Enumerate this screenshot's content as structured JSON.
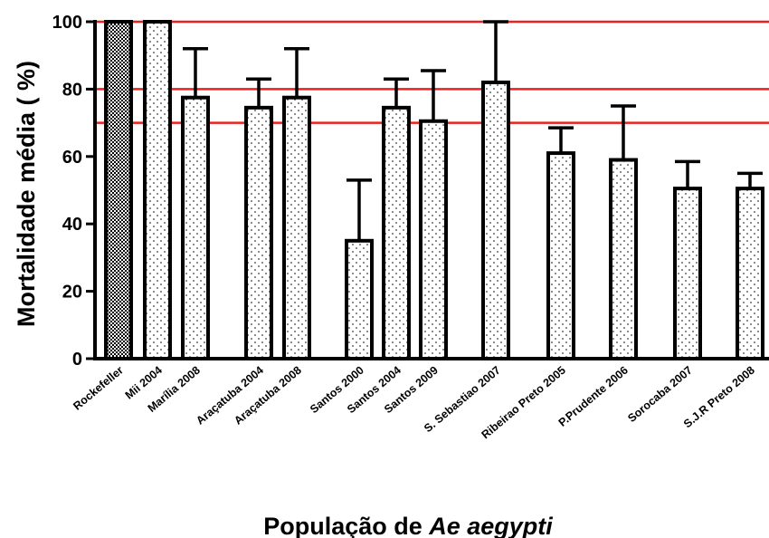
{
  "chart_data": {
    "type": "bar",
    "xlabel": "População de Ae aegypti",
    "xlabel_prefix": "População de ",
    "xlabel_italic": "Ae aegypti",
    "ylabel": "Mortalidade média ( %)",
    "ylim": [
      0,
      100
    ],
    "yticks": [
      0,
      20,
      40,
      60,
      80,
      100
    ],
    "reference_lines": [
      100,
      80,
      70
    ],
    "reference_line_color": "#e8231f",
    "categories": [
      "Rockefeller",
      "Mii 2004",
      "Marília 2008",
      "Araçatuba 2004",
      "Araçatuba 2008",
      "Santos 2000",
      "Santos 2004",
      "Santos 2009",
      "S. Sebastiao 2007",
      "Ribeirao Preto 2005",
      "P.Prudente 2006",
      "Sorocaba 2007",
      "S.J.R Preto 2008"
    ],
    "values": [
      100,
      100,
      77.5,
      74.5,
      77.5,
      35,
      74.5,
      70.5,
      82,
      61,
      59,
      50.5,
      50.5
    ],
    "error_upper": [
      100,
      100,
      92,
      83,
      92,
      53,
      83,
      85.5,
      100,
      68.5,
      75,
      58.5,
      55
    ],
    "fill_patterns": [
      "checker",
      "dots",
      "dots",
      "dots",
      "dots",
      "dots",
      "dots",
      "dots",
      "dots",
      "dots",
      "dots",
      "dots",
      "dots"
    ],
    "grid": false,
    "legend": "none"
  }
}
